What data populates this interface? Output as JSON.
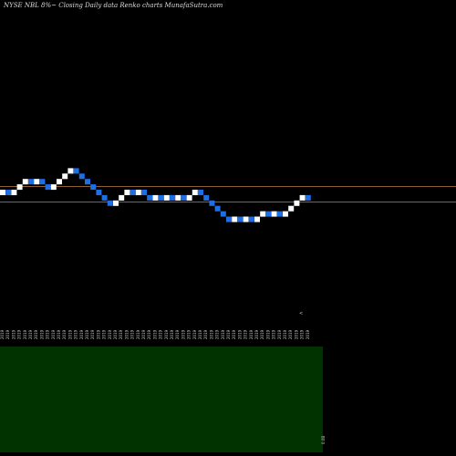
{
  "header": {
    "title": "NYSE NBL  8%~  Closing Daily data  Renko  charts MunafaSutra.com"
  },
  "colors": {
    "background": "#000000",
    "up_brick": "#ffffff",
    "down_brick": "#1e6ee6",
    "reference_line": "#c08040",
    "volume_panel": "#003300"
  },
  "chart_data": {
    "type": "renko",
    "brick_sequence": [
      "up",
      "down",
      "up",
      "up",
      "up",
      "down",
      "up",
      "down",
      "down",
      "up",
      "up",
      "up",
      "up",
      "down",
      "down",
      "down",
      "down",
      "down",
      "down",
      "down",
      "up",
      "up",
      "up",
      "down",
      "up",
      "down",
      "down",
      "up",
      "down",
      "up",
      "down",
      "up",
      "down",
      "up",
      "up",
      "down",
      "down",
      "down",
      "down",
      "down",
      "down",
      "up",
      "down",
      "up",
      "down",
      "up",
      "up",
      "down",
      "up",
      "down",
      "up",
      "up",
      "up",
      "up",
      "down"
    ],
    "x_tick_labels": [
      "2019",
      "2019",
      "2019",
      "2019",
      "2019",
      "2019",
      "2019",
      "2019",
      "2019",
      "2019",
      "2019",
      "2019",
      "2019",
      "2019",
      "2019",
      "2019",
      "2019",
      "2019",
      "2019",
      "2019",
      "2019",
      "2019",
      "2019",
      "2019",
      "2019",
      "2019",
      "2019",
      "2019",
      "2019",
      "2019",
      "2019",
      "2019",
      "2019",
      "2019",
      "2019",
      "2019",
      "2019",
      "2019",
      "2019",
      "2019",
      "2019",
      "2019",
      "2019",
      "2019",
      "2019",
      "2019",
      "2019",
      "2019",
      "2019",
      "2019",
      "2019",
      "2019",
      "2019",
      "2019",
      "2019"
    ],
    "reference_lines": [
      "upper",
      "lower"
    ],
    "volume_label": "0.0B",
    "marker": "<"
  }
}
